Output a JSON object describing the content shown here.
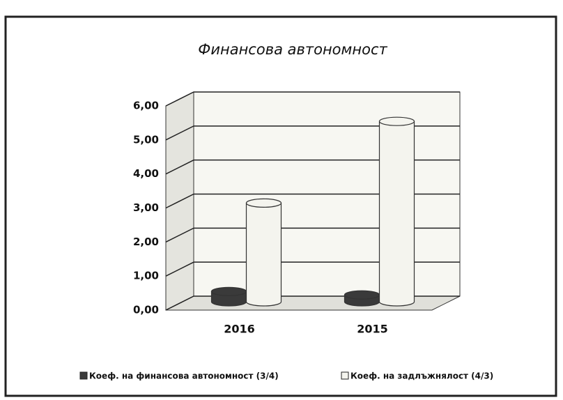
{
  "chart_data": {
    "type": "bar3d-cylinder",
    "title": "Финансова автономност",
    "categories": [
      "2016",
      "2015"
    ],
    "series": [
      {
        "name": "Коеф. на финансова автономност (3/4)",
        "color": "#3a3a3a",
        "values": [
          0.3,
          0.2
        ]
      },
      {
        "name": "Коеф. на задлъжнялост  (4/3)",
        "color": "#f4f4ee",
        "values": [
          2.9,
          5.3
        ]
      }
    ],
    "ylim": [
      0,
      6
    ],
    "yticks": [
      {
        "value": 0,
        "label": "0,00"
      },
      {
        "value": 1,
        "label": "1,00"
      },
      {
        "value": 2,
        "label": "2,00"
      },
      {
        "value": 3,
        "label": "3,00"
      },
      {
        "value": 4,
        "label": "4,00"
      },
      {
        "value": 5,
        "label": "5,00"
      },
      {
        "value": 6,
        "label": "6,00"
      }
    ],
    "grid": true,
    "legend": "bottom"
  }
}
